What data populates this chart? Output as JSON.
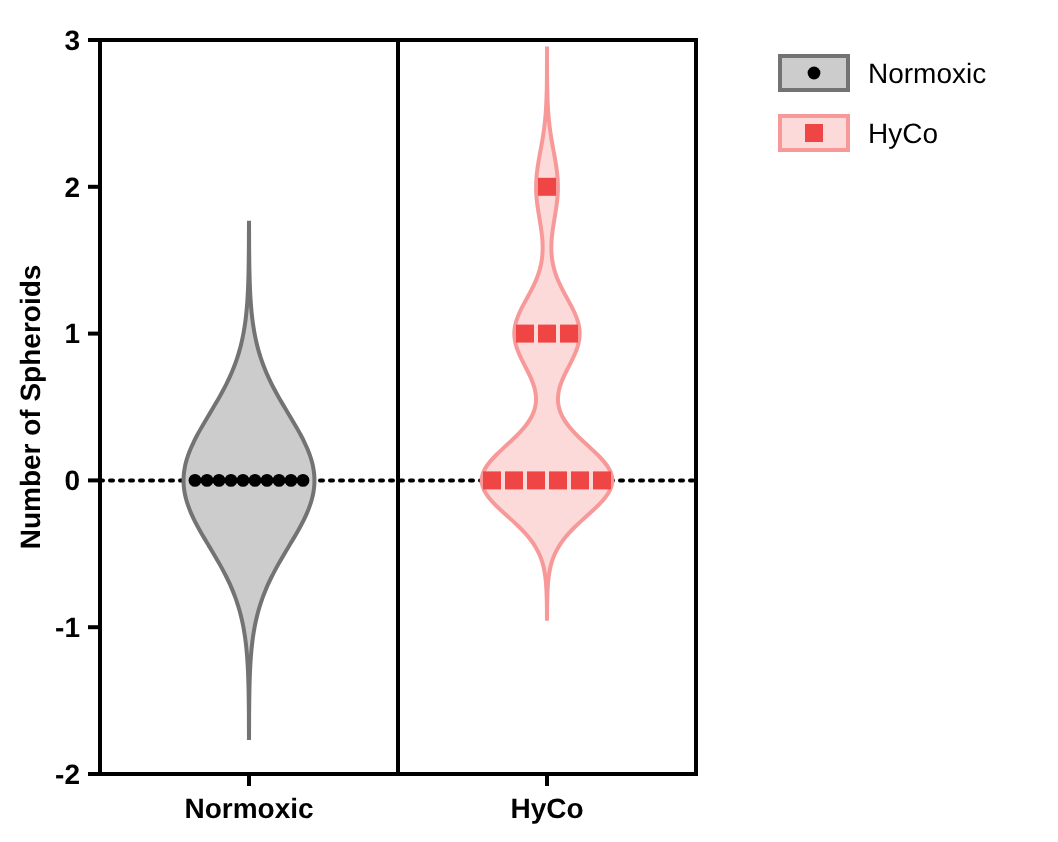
{
  "chart_data": {
    "type": "scatter",
    "ylabel": "Number of Spheroids",
    "categories": [
      "Normoxic",
      "HyCo"
    ],
    "series": [
      {
        "name": "Normoxic",
        "color": "#000000",
        "marker": "circle",
        "x": [
          "Normoxic",
          "Normoxic",
          "Normoxic",
          "Normoxic",
          "Normoxic",
          "Normoxic",
          "Normoxic",
          "Normoxic",
          "Normoxic",
          "Normoxic"
        ],
        "values": [
          0,
          0,
          0,
          0,
          0,
          0,
          0,
          0,
          0,
          0
        ]
      },
      {
        "name": "HyCo",
        "color": "#f04545",
        "marker": "square",
        "x": [
          "HyCo",
          "HyCo",
          "HyCo",
          "HyCo",
          "HyCo",
          "HyCo",
          "HyCo",
          "HyCo",
          "HyCo",
          "HyCo"
        ],
        "values": [
          0,
          0,
          0,
          0,
          0,
          0,
          1,
          1,
          1,
          2
        ]
      }
    ],
    "ylim": [
      -2,
      3
    ],
    "yticks": [
      -2,
      -1,
      0,
      1,
      2,
      3
    ],
    "ref_lines": [
      {
        "axis": "y",
        "value": 0,
        "line_style": "dotted",
        "color": "#000000"
      }
    ],
    "grid": false,
    "legend": "top right"
  }
}
